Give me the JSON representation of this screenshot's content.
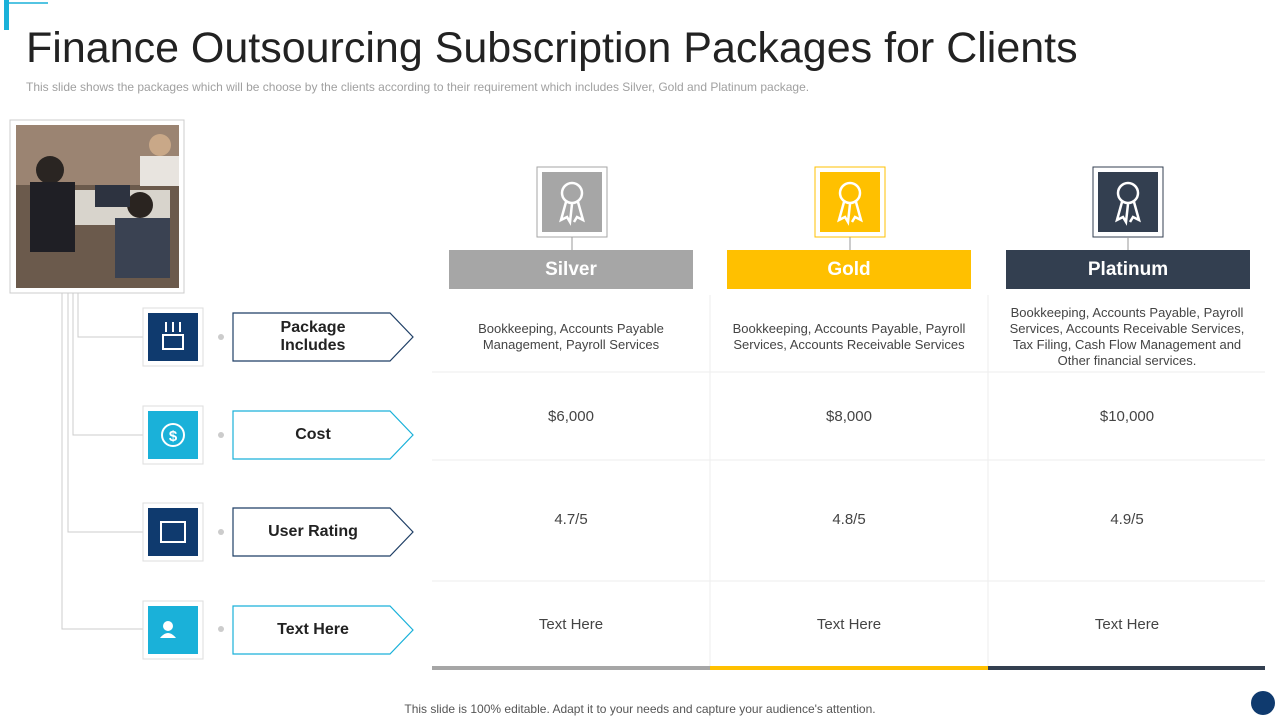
{
  "header": {
    "title": "Finance Outsourcing Subscription Packages for Clients",
    "subtitle": "This slide shows the packages which will be choose by the clients according to their requirement  which includes Silver, Gold and Platinum package."
  },
  "packages": [
    "Silver",
    "Gold",
    "Platinum"
  ],
  "rows": [
    {
      "label": "Package Includes",
      "cells": [
        "Bookkeeping, Accounts Payable Management, Payroll Services",
        "Bookkeeping, Accounts Payable, Payroll Services, Accounts Receivable  Services",
        "Bookkeeping, Accounts Payable, Payroll Services, Accounts Receivable  Services, Tax Filing, Cash Flow Management and Other financial services."
      ]
    },
    {
      "label": "Cost",
      "cells": [
        "$6,000",
        "$8,000",
        "$10,000"
      ]
    },
    {
      "label": "User Rating",
      "cells": [
        "4.7/5",
        "4.8/5",
        "4.9/5"
      ]
    },
    {
      "label": "Text Here",
      "cells": [
        "Text Here",
        "Text Here",
        "Text Here"
      ]
    }
  ],
  "footer": "This slide is 100% editable. Adapt it to your needs and capture your audience's attention."
}
